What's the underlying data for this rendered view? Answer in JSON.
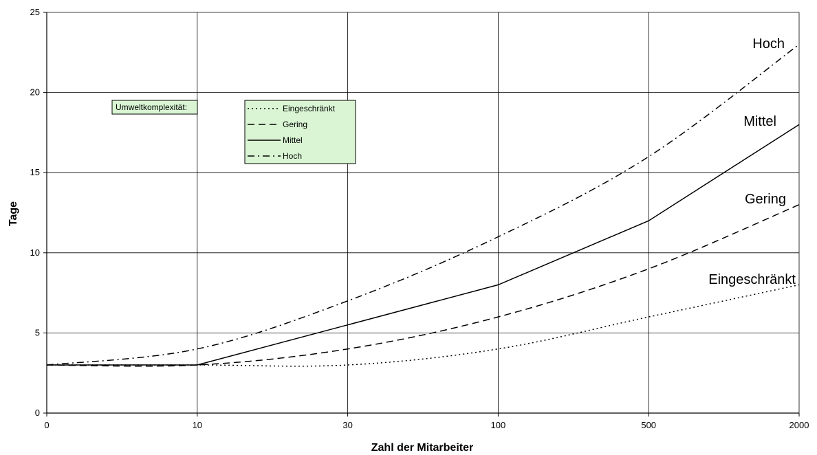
{
  "chart_data": {
    "type": "line",
    "title": "",
    "xlabel": "Zahl der Mitarbeiter",
    "ylabel": "Tage",
    "categories": [
      "0",
      "10",
      "30",
      "100",
      "500",
      "2000"
    ],
    "ylim": [
      0,
      25
    ],
    "yticks": [
      "0",
      "5",
      "10",
      "15",
      "20",
      "25"
    ],
    "grid": true,
    "legend_title": "Umweltkomplexität:",
    "legend_placement": "top-left",
    "series": [
      {
        "name": "Eingeschränkt",
        "values": [
          3,
          3,
          3,
          4,
          6,
          8
        ],
        "dash": "dotted"
      },
      {
        "name": "Gering",
        "values": [
          3,
          3,
          4,
          6,
          9,
          13
        ],
        "dash": "dashed"
      },
      {
        "name": "Mittel",
        "values": [
          3,
          3,
          5.5,
          8,
          12,
          18
        ],
        "dash": "solid"
      },
      {
        "name": "Hoch",
        "values": [
          3,
          4,
          7,
          11,
          16,
          23
        ],
        "dash": "dash-dot"
      }
    ],
    "end_labels": [
      "Hoch",
      "Mittel",
      "Gering",
      "Eingeschränkt"
    ]
  },
  "colors": {
    "line": "#000000",
    "legend_bg": "#d9f5d3",
    "grid": "#000000"
  }
}
